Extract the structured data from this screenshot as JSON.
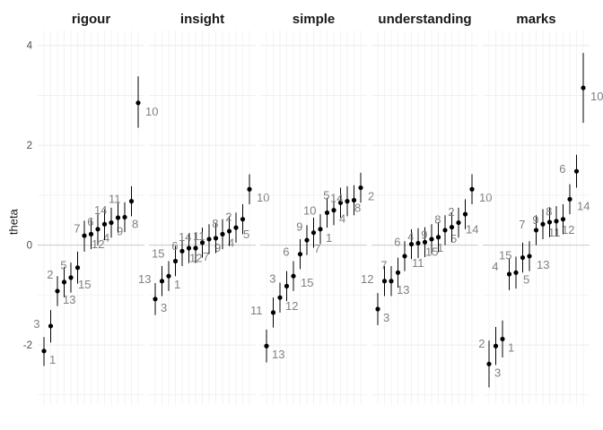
{
  "chart_data": {
    "type": "scatter",
    "ylabel": "theta",
    "xlabel": "",
    "ylim": [
      -3.2,
      4.3
    ],
    "yticks": [
      -2,
      0,
      2,
      4
    ],
    "grid": true,
    "zero_line": true,
    "facets": [
      {
        "name": "rigour",
        "points": [
          {
            "label": "1",
            "theta": -2.12,
            "lo": -2.42,
            "hi": -1.84
          },
          {
            "label": "3",
            "theta": -1.62,
            "lo": -1.95,
            "hi": -1.3
          },
          {
            "label": "13",
            "theta": -0.92,
            "lo": -1.22,
            "hi": -0.62
          },
          {
            "label": "2",
            "theta": -0.74,
            "lo": -1.04,
            "hi": -0.44
          },
          {
            "label": "15",
            "theta": -0.65,
            "lo": -0.95,
            "hi": -0.35
          },
          {
            "label": "5",
            "theta": -0.45,
            "lo": -0.77,
            "hi": -0.13
          },
          {
            "label": "12",
            "theta": 0.19,
            "lo": -0.13,
            "hi": 0.49
          },
          {
            "label": "7",
            "theta": 0.22,
            "lo": -0.08,
            "hi": 0.52
          },
          {
            "label": "4",
            "theta": 0.32,
            "lo": 0.0,
            "hi": 0.62
          },
          {
            "label": "6",
            "theta": 0.42,
            "lo": 0.1,
            "hi": 0.72
          },
          {
            "label": "9",
            "theta": 0.45,
            "lo": 0.15,
            "hi": 0.75
          },
          {
            "label": "14",
            "theta": 0.55,
            "lo": 0.25,
            "hi": 0.85
          },
          {
            "label": "8",
            "theta": 0.56,
            "lo": 0.26,
            "hi": 0.86
          },
          {
            "label": "11",
            "theta": 0.88,
            "lo": 0.58,
            "hi": 1.18
          },
          {
            "label": "10",
            "theta": 2.85,
            "lo": 2.35,
            "hi": 3.38
          }
        ]
      },
      {
        "name": "insight",
        "points": [
          {
            "label": "3",
            "theta": -1.08,
            "lo": -1.4,
            "hi": -0.76
          },
          {
            "label": "13",
            "theta": -0.72,
            "lo": -1.02,
            "hi": -0.42
          },
          {
            "label": "1",
            "theta": -0.62,
            "lo": -0.92,
            "hi": -0.32
          },
          {
            "label": "15",
            "theta": -0.32,
            "lo": -0.62,
            "hi": -0.02
          },
          {
            "label": "12",
            "theta": -0.12,
            "lo": -0.42,
            "hi": 0.18
          },
          {
            "label": "6",
            "theta": -0.06,
            "lo": -0.36,
            "hi": 0.24
          },
          {
            "label": "7",
            "theta": -0.06,
            "lo": -0.36,
            "hi": 0.24
          },
          {
            "label": "14",
            "theta": 0.05,
            "lo": -0.25,
            "hi": 0.35
          },
          {
            "label": "9",
            "theta": 0.12,
            "lo": -0.18,
            "hi": 0.42
          },
          {
            "label": "11",
            "theta": 0.14,
            "lo": -0.16,
            "hi": 0.44
          },
          {
            "label": "4",
            "theta": 0.22,
            "lo": -0.08,
            "hi": 0.52
          },
          {
            "label": "8",
            "theta": 0.28,
            "lo": -0.02,
            "hi": 0.58
          },
          {
            "label": "5",
            "theta": 0.35,
            "lo": 0.05,
            "hi": 0.65
          },
          {
            "label": "2",
            "theta": 0.52,
            "lo": 0.22,
            "hi": 0.82
          },
          {
            "label": "10",
            "theta": 1.12,
            "lo": 0.82,
            "hi": 1.42
          }
        ]
      },
      {
        "name": "simple",
        "points": [
          {
            "label": "13",
            "theta": -2.02,
            "lo": -2.35,
            "hi": -1.69
          },
          {
            "label": "11",
            "theta": -1.35,
            "lo": -1.65,
            "hi": -1.05
          },
          {
            "label": "12",
            "theta": -1.05,
            "lo": -1.35,
            "hi": -0.75
          },
          {
            "label": "3",
            "theta": -0.82,
            "lo": -1.12,
            "hi": -0.52
          },
          {
            "label": "15",
            "theta": -0.62,
            "lo": -0.92,
            "hi": -0.32
          },
          {
            "label": "6",
            "theta": -0.18,
            "lo": -0.48,
            "hi": 0.12
          },
          {
            "label": "7",
            "theta": 0.1,
            "lo": -0.2,
            "hi": 0.4
          },
          {
            "label": "9",
            "theta": 0.25,
            "lo": -0.05,
            "hi": 0.55
          },
          {
            "label": "1",
            "theta": 0.32,
            "lo": 0.02,
            "hi": 0.62
          },
          {
            "label": "10",
            "theta": 0.65,
            "lo": 0.35,
            "hi": 0.95
          },
          {
            "label": "4",
            "theta": 0.7,
            "lo": 0.4,
            "hi": 1.0
          },
          {
            "label": "5",
            "theta": 0.85,
            "lo": 0.55,
            "hi": 1.15
          },
          {
            "label": "8",
            "theta": 0.88,
            "lo": 0.58,
            "hi": 1.18
          },
          {
            "label": "14",
            "theta": 0.9,
            "lo": 0.6,
            "hi": 1.2
          },
          {
            "label": "2",
            "theta": 1.15,
            "lo": 0.85,
            "hi": 1.45
          }
        ]
      },
      {
        "name": "understanding",
        "points": [
          {
            "label": "3",
            "theta": -1.28,
            "lo": -1.6,
            "hi": -0.96
          },
          {
            "label": "12",
            "theta": -0.72,
            "lo": -1.02,
            "hi": -0.42
          },
          {
            "label": "13",
            "theta": -0.72,
            "lo": -1.02,
            "hi": -0.42
          },
          {
            "label": "7",
            "theta": -0.55,
            "lo": -0.85,
            "hi": -0.25
          },
          {
            "label": "11",
            "theta": -0.22,
            "lo": -0.52,
            "hi": 0.08
          },
          {
            "label": "6",
            "theta": 0.02,
            "lo": -0.28,
            "hi": 0.32
          },
          {
            "label": "15",
            "theta": 0.04,
            "lo": -0.26,
            "hi": 0.34
          },
          {
            "label": "4",
            "theta": 0.06,
            "lo": -0.24,
            "hi": 0.36
          },
          {
            "label": "1",
            "theta": 0.12,
            "lo": -0.18,
            "hi": 0.42
          },
          {
            "label": "9",
            "theta": 0.16,
            "lo": -0.14,
            "hi": 0.46
          },
          {
            "label": "5",
            "theta": 0.3,
            "lo": 0.0,
            "hi": 0.6
          },
          {
            "label": "8",
            "theta": 0.36,
            "lo": 0.06,
            "hi": 0.66
          },
          {
            "label": "14",
            "theta": 0.45,
            "lo": 0.15,
            "hi": 0.75
          },
          {
            "label": "2",
            "theta": 0.62,
            "lo": 0.32,
            "hi": 0.92
          },
          {
            "label": "10",
            "theta": 1.12,
            "lo": 0.82,
            "hi": 1.42
          }
        ]
      },
      {
        "name": "marks",
        "points": [
          {
            "label": "3",
            "theta": -2.38,
            "lo": -2.85,
            "hi": -1.91
          },
          {
            "label": "2",
            "theta": -2.02,
            "lo": -2.4,
            "hi": -1.64
          },
          {
            "label": "1",
            "theta": -1.88,
            "lo": -2.25,
            "hi": -1.51
          },
          {
            "label": "4",
            "theta": -0.58,
            "lo": -0.9,
            "hi": -0.26
          },
          {
            "label": "5",
            "theta": -0.55,
            "lo": -0.87,
            "hi": -0.23
          },
          {
            "label": "15",
            "theta": -0.25,
            "lo": -0.55,
            "hi": 0.05
          },
          {
            "label": "13",
            "theta": -0.22,
            "lo": -0.52,
            "hi": 0.08
          },
          {
            "label": "7",
            "theta": 0.3,
            "lo": 0.0,
            "hi": 0.6
          },
          {
            "label": "11",
            "theta": 0.42,
            "lo": 0.12,
            "hi": 0.72
          },
          {
            "label": "9",
            "theta": 0.46,
            "lo": 0.16,
            "hi": 0.76
          },
          {
            "label": "12",
            "theta": 0.48,
            "lo": 0.18,
            "hi": 0.78
          },
          {
            "label": "8",
            "theta": 0.52,
            "lo": 0.22,
            "hi": 0.82
          },
          {
            "label": "14",
            "theta": 0.92,
            "lo": 0.62,
            "hi": 1.22
          },
          {
            "label": "6",
            "theta": 1.48,
            "lo": 1.15,
            "hi": 1.81
          },
          {
            "label": "10",
            "theta": 3.15,
            "lo": 2.45,
            "hi": 3.85
          }
        ]
      }
    ]
  },
  "colors": {
    "grid": "#ebebeb",
    "zero_line": "#c8c8c8",
    "point": "#000000",
    "label": "#808080"
  }
}
